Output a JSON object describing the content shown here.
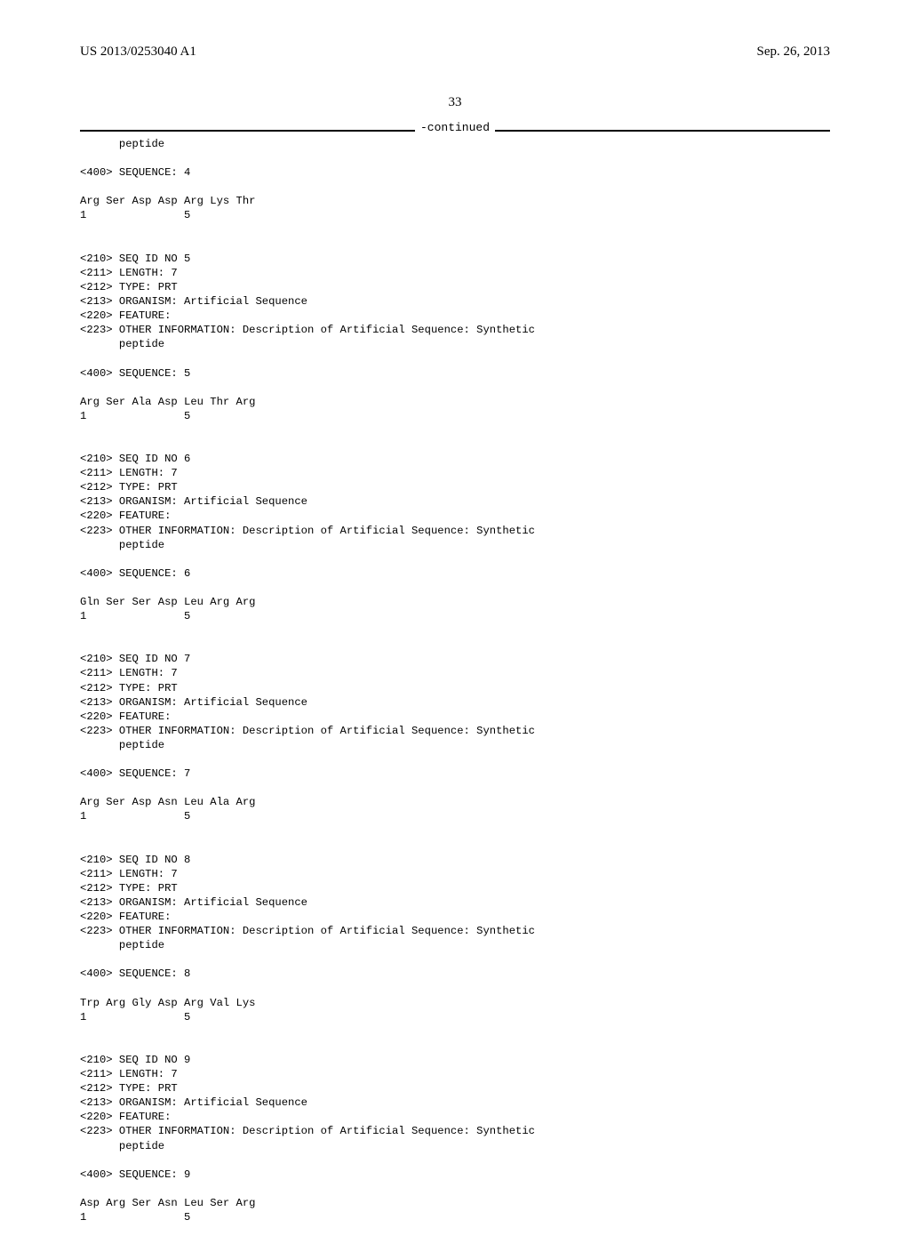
{
  "header": {
    "pub_number": "US 2013/0253040 A1",
    "pub_date": "Sep. 26, 2013"
  },
  "page_number": "33",
  "continued_label": "-continued",
  "listing_text": "      peptide\n\n<400> SEQUENCE: 4\n\nArg Ser Asp Asp Arg Lys Thr\n1               5\n\n\n<210> SEQ ID NO 5\n<211> LENGTH: 7\n<212> TYPE: PRT\n<213> ORGANISM: Artificial Sequence\n<220> FEATURE:\n<223> OTHER INFORMATION: Description of Artificial Sequence: Synthetic\n      peptide\n\n<400> SEQUENCE: 5\n\nArg Ser Ala Asp Leu Thr Arg\n1               5\n\n\n<210> SEQ ID NO 6\n<211> LENGTH: 7\n<212> TYPE: PRT\n<213> ORGANISM: Artificial Sequence\n<220> FEATURE:\n<223> OTHER INFORMATION: Description of Artificial Sequence: Synthetic\n      peptide\n\n<400> SEQUENCE: 6\n\nGln Ser Ser Asp Leu Arg Arg\n1               5\n\n\n<210> SEQ ID NO 7\n<211> LENGTH: 7\n<212> TYPE: PRT\n<213> ORGANISM: Artificial Sequence\n<220> FEATURE:\n<223> OTHER INFORMATION: Description of Artificial Sequence: Synthetic\n      peptide\n\n<400> SEQUENCE: 7\n\nArg Ser Asp Asn Leu Ala Arg\n1               5\n\n\n<210> SEQ ID NO 8\n<211> LENGTH: 7\n<212> TYPE: PRT\n<213> ORGANISM: Artificial Sequence\n<220> FEATURE:\n<223> OTHER INFORMATION: Description of Artificial Sequence: Synthetic\n      peptide\n\n<400> SEQUENCE: 8\n\nTrp Arg Gly Asp Arg Val Lys\n1               5\n\n\n<210> SEQ ID NO 9\n<211> LENGTH: 7\n<212> TYPE: PRT\n<213> ORGANISM: Artificial Sequence\n<220> FEATURE:\n<223> OTHER INFORMATION: Description of Artificial Sequence: Synthetic\n      peptide\n\n<400> SEQUENCE: 9\n\nAsp Arg Ser Asn Leu Ser Arg\n1               5"
}
